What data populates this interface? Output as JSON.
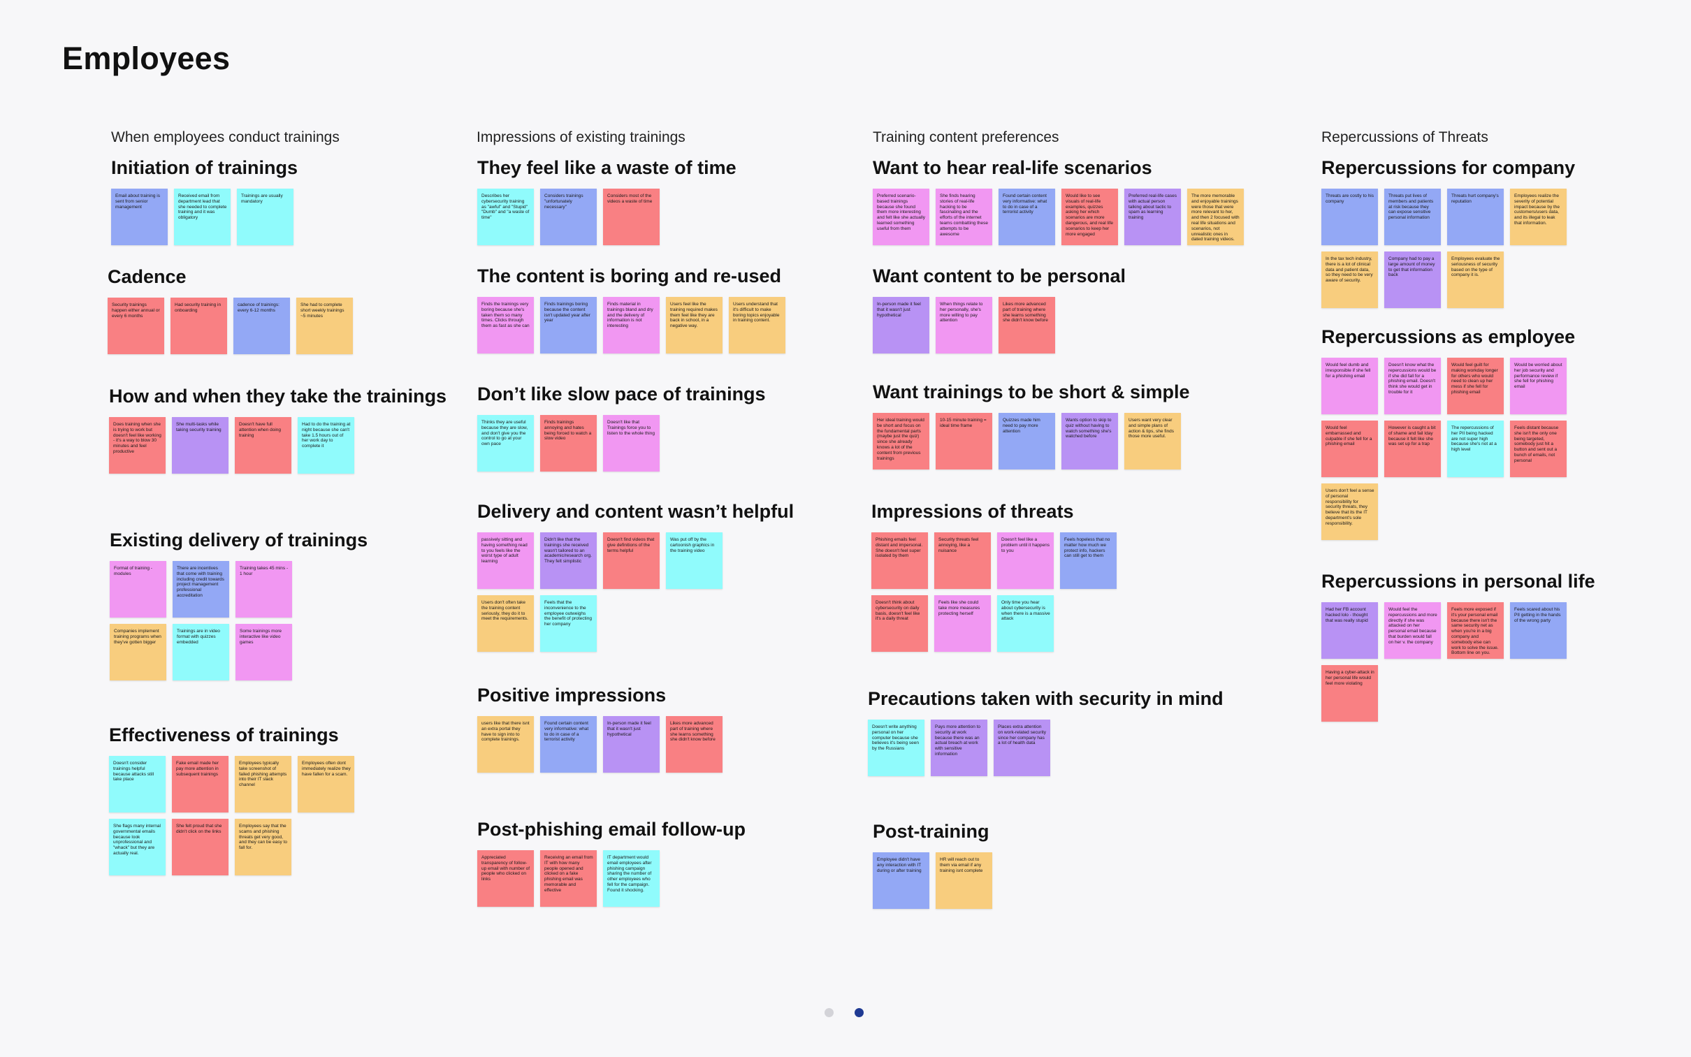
{
  "page": {
    "title": "Employees"
  },
  "colors": {
    "blue": "#93a8f5",
    "cyan": "#90fbfc",
    "red": "#f98083",
    "orange": "#f8cd7e",
    "pink": "#f197f2",
    "purple": "#b892f4"
  },
  "columns": [
    {
      "header": "When employees conduct trainings"
    },
    {
      "header": "Impressions of existing trainings"
    },
    {
      "header": "Training content preferences"
    },
    {
      "header": "Repercussions of Threats"
    }
  ],
  "groups": [
    {
      "title": "Initiation of trainings",
      "notes": [
        {
          "color": "blue",
          "text": "Email about training is sent from senior management"
        },
        {
          "color": "cyan",
          "text": "Received email from department lead that she needed to complete training and it was obligatory"
        },
        {
          "color": "cyan",
          "text": "Trainings are usually mandatory"
        }
      ]
    },
    {
      "title": "Cadence",
      "notes": [
        {
          "color": "red",
          "text": "Security trainings happen either annual or every 6 months"
        },
        {
          "color": "red",
          "text": "Had security training in onboarding"
        },
        {
          "color": "blue",
          "text": "cadence of trainings: every 6-12 months"
        },
        {
          "color": "orange",
          "text": "She had to complete short weekly trainings ~5 minutes"
        }
      ]
    },
    {
      "title": "How and when they take the trainings",
      "notes": [
        {
          "color": "red",
          "text": "Does training when she is trying to work but doesn't feel like working - it's a way to blow 30 minutes and feel productive"
        },
        {
          "color": "purple",
          "text": "She multi-tasks while taking security training"
        },
        {
          "color": "red",
          "text": "Doesn't have full attention when doing training"
        },
        {
          "color": "cyan",
          "text": "Had to do the training at night because she can't take 1.5 hours out of her work day to complete it"
        }
      ]
    },
    {
      "title": "Existing delivery of trainings",
      "notes": [
        {
          "color": "pink",
          "text": "Format of training - modules"
        },
        {
          "color": "blue",
          "text": "There are incentives that come with training including credit towards project management professional accreditation"
        },
        {
          "color": "pink",
          "text": "Training takes 45 mins - 1 hour"
        },
        {
          "color": "orange",
          "text": "Companies implement training programs when they've gotten bigger"
        },
        {
          "color": "cyan",
          "text": "Trainings are in video format with quizzes embedded"
        },
        {
          "color": "pink",
          "text": "Some trainings more interactive like video games"
        }
      ]
    },
    {
      "title": "Effectiveness of trainings",
      "notes": [
        {
          "color": "cyan",
          "text": "Doesn't consider trainings helpful because attacks still take place"
        },
        {
          "color": "red",
          "text": "Fake email made her pay more attention in subsequent trainings"
        },
        {
          "color": "orange",
          "text": "Employees typically take screenshot of failed phishing attempts into their IT slack channel"
        },
        {
          "color": "orange",
          "text": "Employees often dont immediately realize they have fallen for a scam."
        },
        {
          "color": "cyan",
          "text": "She flags many internal governmental emails because look unprofessional and \"whack\" but they are actually real."
        },
        {
          "color": "red",
          "text": "She felt proud that she didn't click on the links"
        },
        {
          "color": "orange",
          "text": "Employees say that the scams and phishing threats get very good, and they can be easy to fall for."
        }
      ]
    },
    {
      "title": "They feel like a waste of time",
      "notes": [
        {
          "color": "cyan",
          "text": "Describes her cybersecurity training as \"awful\" and \"Stupid\" \"Dumb\" and \"a waste of time\""
        },
        {
          "color": "blue",
          "text": "Considers trainings \"unfortunately necessary\""
        },
        {
          "color": "red",
          "text": "Considers most of the videos a waste of time"
        }
      ]
    },
    {
      "title": "The content is boring and re-used",
      "notes": [
        {
          "color": "pink",
          "text": "Finds the trainings very boring because she's taken them so many times. Clicks through them as fast as she can"
        },
        {
          "color": "blue",
          "text": "Finds trainings boring because the content isn't updated year after year"
        },
        {
          "color": "pink",
          "text": "Finds material in trainings bland and dry and the delivery of information is not interesting"
        },
        {
          "color": "orange",
          "text": "Users feel like the training required makes them feel like they are back in school, in a negative way."
        },
        {
          "color": "orange",
          "text": "Users understand that it's difficult to make boring topics enjoyable in training content."
        }
      ]
    },
    {
      "title": "Don’t like slow pace of trainings",
      "notes": [
        {
          "color": "cyan",
          "text": "Thinks they are useful because they are slow, and don't give you the control to go at your own pace"
        },
        {
          "color": "red",
          "text": "Finds trainings annoying and hates being forced to watch a slow video"
        },
        {
          "color": "pink",
          "text": "Doesn't like that Trainings force you to listen to the whole thing"
        }
      ]
    },
    {
      "title": "Delivery and content wasn’t helpful",
      "notes": [
        {
          "color": "pink",
          "text": "passively sitting and having something read to you feels like the worst type of adult learning"
        },
        {
          "color": "purple",
          "text": "Didn't like that the trainings she received wasn't tailored to an academic/research org. They felt simplistic"
        },
        {
          "color": "red",
          "text": "Doesn't find videos that give definitions of the terms helpful"
        },
        {
          "color": "cyan",
          "text": "Was put off by the cartoonish graphics in the training video"
        },
        {
          "color": "orange",
          "text": "Users don't often take the training content seriously, they do it to meet the requirements."
        },
        {
          "color": "cyan",
          "text": "Feels that the inconvenience to the employee outweighs the benefit of protecting her company"
        }
      ]
    },
    {
      "title": "Positive impressions",
      "notes": [
        {
          "color": "orange",
          "text": "users like that there isnt an extra portal they have to sign into to complete trainings."
        },
        {
          "color": "blue",
          "text": "Found certain content very informative: what to do in case of a terrorist activity"
        },
        {
          "color": "purple",
          "text": "In-person made it feel that it wasn't just hypothetical"
        },
        {
          "color": "red",
          "text": "Likes more advanced part of training where she learns something she didn't know before"
        }
      ]
    },
    {
      "title": "Post-phishing email follow-up",
      "notes": [
        {
          "color": "red",
          "text": "Appreciated transparency of follow-up email with number of people who clicked on links"
        },
        {
          "color": "red",
          "text": "Receiving an email from IT with how many people opened and clicked on a fake phishing email was memorable and effective"
        },
        {
          "color": "cyan",
          "text": "IT department would email employees after phishing campaign sharing the number of other employees who fell for the campaign. Found it shocking."
        }
      ]
    },
    {
      "title": "Want to hear real-life scenarios",
      "notes": [
        {
          "color": "pink",
          "text": "Preferred scenario-based trainings because she found them more interesting and felt like she actually learned something useful from them"
        },
        {
          "color": "pink",
          "text": "She finds hearing stories of real-life hacking to be fascinating and the efforts of the internet teams combatting these attempts to be awesome"
        },
        {
          "color": "blue",
          "text": "Found certain content very informative: what to do in case of a terrorist activity"
        },
        {
          "color": "red",
          "text": "Would like to see visuals of real-life examples, quizzes asking her which scenarios are more dangerous, and real life scenarios to keep her more engaged"
        },
        {
          "color": "purple",
          "text": "Preferred real-life cases with actual person talking about tactic to spam as learning training"
        },
        {
          "color": "orange",
          "text": "The more memorable and enjoyable trainings were those that were more relevant to her, and then 2 focused with real life situations and scenarios, not unrealistic ones in dated training videos."
        }
      ]
    },
    {
      "title": "Want content to be personal",
      "notes": [
        {
          "color": "purple",
          "text": "In-person made it feel that it wasn't just hypothetical"
        },
        {
          "color": "pink",
          "text": "When things relate to her personally, she's more willing to pay attention"
        },
        {
          "color": "red",
          "text": "Likes more advanced part of training where she learns something she didn't know before"
        }
      ]
    },
    {
      "title": "Want trainings to be short & simple",
      "notes": [
        {
          "color": "red",
          "text": "Her ideal training would be short and focus on the fundamental parts (maybe just the quiz) since she already knows a lot of the content from previous trainings"
        },
        {
          "color": "red",
          "text": "10-15 minute training = ideal time frame"
        },
        {
          "color": "blue",
          "text": "Quizzes made him need to pay more attention"
        },
        {
          "color": "purple",
          "text": "Wants option to skip to quiz without having to watch something she's watched before"
        },
        {
          "color": "orange",
          "text": "Users want very clear and simple plans of action & tips, she finds those more useful."
        }
      ]
    },
    {
      "title": "Impressions of threats",
      "notes": [
        {
          "color": "red",
          "text": "Phishing emails feel distant and impersonal. She doesn't feel super isolated by them"
        },
        {
          "color": "red",
          "text": "Security threats feel annoying, like a nuisance"
        },
        {
          "color": "pink",
          "text": "Doesn't feel like a problem until it happens to you"
        },
        {
          "color": "blue",
          "text": "Feels hopeless that no matter how much we protect info, hackers can still get to them"
        },
        {
          "color": "red",
          "text": "Doesn't think about cybersecurity on daily basis, doesn't feel like it's a daily threat"
        },
        {
          "color": "pink",
          "text": "Feels like she could take more measures protecting herself"
        },
        {
          "color": "cyan",
          "text": "Only time you hear about cybersecurity is when there is a massive attack"
        }
      ]
    },
    {
      "title": "Precautions taken with security in mind",
      "notes": [
        {
          "color": "cyan",
          "text": "Doesn't write anything personal on her computer because she believes it's being seen by the Russians"
        },
        {
          "color": "purple",
          "text": "Pays more attention to security at work because there was an actual breach at work with sensitive information"
        },
        {
          "color": "purple",
          "text": "Places extra attention on work-related security since her company has a lot of health data"
        }
      ]
    },
    {
      "title": "Post-training",
      "notes": [
        {
          "color": "blue",
          "text": "Employee didn't have any interaction with IT during or after training"
        },
        {
          "color": "orange",
          "text": "HR will reach out to them via email if any training isnt complete"
        }
      ]
    },
    {
      "title": "Repercussions for company",
      "notes": [
        {
          "color": "blue",
          "text": "Threats are costly to his company"
        },
        {
          "color": "blue",
          "text": "Threats put lives of members and patients at risk because they can expose sensitive personal information"
        },
        {
          "color": "blue",
          "text": "Threats hurt company's reputation"
        },
        {
          "color": "orange",
          "text": "Employees realize the severity of potential impact because by the customers/users data, and its illegal to leak that information."
        },
        {
          "color": "orange",
          "text": "In the tax tech industry, there is a lot of clinical data and patient data, so they need to be very aware of security."
        },
        {
          "color": "purple",
          "text": "Company had to pay a large amount of money to get that information back"
        },
        {
          "color": "orange",
          "text": "Employees evaluate the seriousness of security based on the type of company it is."
        }
      ]
    },
    {
      "title": "Repercussions as employee",
      "notes": [
        {
          "color": "pink",
          "text": "Would feel dumb and irresponsible if she fell for a phishing email"
        },
        {
          "color": "pink",
          "text": "Doesn't know what the repercussions would be if she did fall for a phishing email. Doesn't think she would get in trouble for it"
        },
        {
          "color": "red",
          "text": "Would feel guilt for making workday longer for others who would need to clean up her mess if she fell for phishing email"
        },
        {
          "color": "pink",
          "text": "Would be worried about her job security and performance review if she fell for phishing email"
        },
        {
          "color": "red",
          "text": "Would feel embarrassed and culpable if she fell for a phishing email"
        },
        {
          "color": "red",
          "text": "However is caught a bit of shame and fail Iday because it felt like she was set up for a trap"
        },
        {
          "color": "cyan",
          "text": "The repercussions of her PII being hacked are not super high because she's not at a high level"
        },
        {
          "color": "red",
          "text": "Feels distant because she isn't the only one being targeted, somebody just hit a button and sent out a bunch of emails, not personal"
        },
        {
          "color": "orange",
          "text": "Users don't feel a sense of personal responsibility for security threats, they believe that its the IT department's sole responsibility."
        }
      ]
    },
    {
      "title": "Repercussions in personal life",
      "notes": [
        {
          "color": "purple",
          "text": "Had her FB account hacked lolo - thought that was really stupid"
        },
        {
          "color": "pink",
          "text": "Would feel the repercussions and more directly if she was attacked on her personal email because that burden would fall on her v. the company"
        },
        {
          "color": "red",
          "text": "Feels more exposed if it's your personal email because there isn't the same security net as when you're in a big company and somebody else can work to solve the issue. Bottom line on you."
        },
        {
          "color": "blue",
          "text": "Feels scared about his PII getting in the hands of the wrong party"
        },
        {
          "color": "red",
          "text": "Having a cyber-attack in her personal life would feel more violating"
        }
      ]
    }
  ],
  "pagination": {
    "dots": [
      {
        "active": false
      },
      {
        "active": true
      }
    ]
  }
}
